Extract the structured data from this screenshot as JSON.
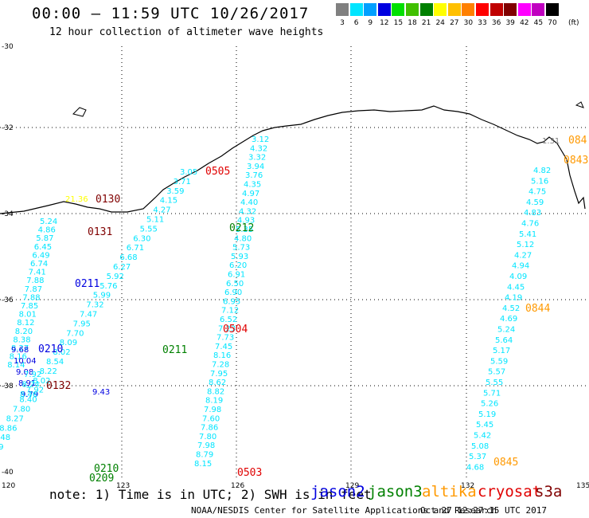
{
  "header": {
    "title": "00:00 – 11:59 UTC 10/26/2017",
    "subtitle": "12 hour collection of altimeter wave heights"
  },
  "legend": {
    "unit": "(ft)",
    "items": [
      {
        "label": "3",
        "color": "#808080"
      },
      {
        "label": "6",
        "color": "#00e5ff"
      },
      {
        "label": "9",
        "color": "#00a0ff"
      },
      {
        "label": "12",
        "color": "#0000e0"
      },
      {
        "label": "15",
        "color": "#00e000"
      },
      {
        "label": "18",
        "color": "#40c000"
      },
      {
        "label": "21",
        "color": "#008000"
      },
      {
        "label": "24",
        "color": "#ffff00"
      },
      {
        "label": "27",
        "color": "#ffc000"
      },
      {
        "label": "30",
        "color": "#ff8000"
      },
      {
        "label": "33",
        "color": "#ff0000"
      },
      {
        "label": "36",
        "color": "#c00000"
      },
      {
        "label": "39",
        "color": "#800000"
      },
      {
        "label": "42",
        "color": "#ff00ff"
      },
      {
        "label": "45",
        "color": "#c000c0"
      },
      {
        "label": "70",
        "color": "#000000"
      }
    ]
  },
  "axes": {
    "lat_ticks": [
      "-30",
      "-32",
      "-34",
      "-36",
      "-38",
      "-40"
    ],
    "lon_ticks": [
      "120",
      "123",
      "126",
      "129",
      "132",
      "135"
    ]
  },
  "footer": {
    "note": "note: 1) Time is in UTC; 2) SWH is in feet",
    "credit": "NOAA/NESDIS Center for Satellite Applications and Research",
    "timestamp": "Oct 27 12:27:15 UTC 2017",
    "satellites": [
      {
        "name": "jason2",
        "color": "#0000e0"
      },
      {
        "name": "jason3",
        "color": "#008000"
      },
      {
        "name": "altika",
        "color": "#ff9900"
      },
      {
        "name": "cryosat",
        "color": "#e00000"
      },
      {
        "name": "s3a",
        "color": "#800000"
      }
    ]
  },
  "passes": [
    {
      "label": "0130",
      "color": "#800000"
    },
    {
      "label": "0131",
      "color": "#800000"
    },
    {
      "label": "0132",
      "color": "#800000"
    },
    {
      "label": "0211",
      "color": "#0000e0"
    },
    {
      "label": "0210",
      "color": "#0000e0"
    },
    {
      "label": "0212",
      "color": "#008000"
    },
    {
      "label": "0211",
      "color": "#008000"
    },
    {
      "label": "0210",
      "color": "#008000"
    },
    {
      "label": "0209",
      "color": "#008000"
    },
    {
      "label": "0505",
      "color": "#e00000"
    },
    {
      "label": "0504",
      "color": "#e00000"
    },
    {
      "label": "0503",
      "color": "#e00000"
    },
    {
      "label": "0844",
      "color": "#ff9900"
    },
    {
      "label": "0843",
      "color": "#ff9900"
    },
    {
      "label": "0845",
      "color": "#ff9900"
    },
    {
      "label": "084",
      "color": "#ff9900"
    }
  ],
  "tracks": {
    "trackA": {
      "color": "#00e5ff",
      "values": [
        "5.24",
        "4.86",
        "5.87",
        "6.45",
        "6.49",
        "6.74",
        "7.41",
        "7.88",
        "7.87",
        "7.88",
        "7.85",
        "8.01",
        "8.12",
        "8.20",
        "8.38",
        "8.27",
        "8.16",
        "8.14"
      ]
    },
    "trackB": {
      "color": "#0000e0",
      "values": [
        "9.68",
        "10.04",
        "9.08",
        "8.91",
        "9.79"
      ]
    },
    "trackC": {
      "color": "#00e5ff",
      "values": [
        "7.92",
        "8.24",
        "8.46"
      ]
    },
    "trackD": {
      "color": "#00e5ff",
      "values": [
        "3.05",
        "3.71",
        "3.59",
        "4.15",
        "4.27",
        "5.11",
        "5.55",
        "6.30",
        "6.71",
        "6.68",
        "6.27",
        "5.92",
        "5.76",
        "5.99",
        "7.32",
        "7.47",
        "7.95",
        "7.70",
        "8.09",
        "8.02",
        "8.54",
        "8.22",
        "8.02",
        "7.92",
        "8.40",
        "7.80",
        "8.27",
        "8.86",
        "7.48",
        "7.49",
        "7.80",
        "8.80"
      ]
    },
    "trackE": {
      "color": "#00e5ff",
      "values": [
        "3.12",
        "4.32",
        "3.32",
        "3.94",
        "3.76",
        "4.35",
        "4.97",
        "4.40",
        "4.32",
        "4.93",
        "5.35",
        "4.80",
        "5.73",
        "5.93",
        "6.20",
        "6.91",
        "6.50",
        "6.90",
        "6.95",
        "7.12",
        "6.52",
        "7.23",
        "7.73",
        "7.45",
        "8.16",
        "7.28",
        "7.95",
        "8.62",
        "8.82",
        "8.19",
        "7.98",
        "7.60",
        "7.86",
        "7.80",
        "7.98",
        "8.79",
        "8.15"
      ]
    },
    "trackF": {
      "color": "#00e5ff",
      "values": [
        "4.82",
        "5.16",
        "4.75",
        "4.59",
        "4.83",
        "4.76",
        "5.41",
        "5.12",
        "4.27",
        "4.94",
        "4.09",
        "4.45",
        "4.19",
        "4.52",
        "4.69",
        "5.24",
        "5.64",
        "5.17",
        "5.59",
        "5.57",
        "5.55",
        "5.71",
        "5.26",
        "5.19",
        "5.45",
        "5.42",
        "5.08",
        "5.37",
        "4.68"
      ]
    },
    "other": [
      {
        "value": "21.36",
        "color": "#ffff00"
      },
      {
        "value": "9.43",
        "color": "#0000e0"
      },
      {
        "value": "1.31",
        "color": "#808080"
      }
    ]
  }
}
